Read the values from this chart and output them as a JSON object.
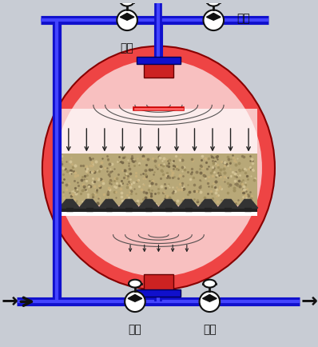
{
  "bg_color": "#c8ccd4",
  "pipe_blue": "#1010cc",
  "pipe_blue_inner": "#4444ff",
  "tank_red": "#cc2222",
  "tank_red2": "#ee4444",
  "tank_pink": "#f8c0c0",
  "tank_white": "#faf0f0",
  "sand_color": "#b8a878",
  "black": "#111111",
  "gray": "#555555",
  "label_open_top": "打开",
  "label_close_top": "关闭",
  "label_open_bot": "打开",
  "label_close_bot": "关闭",
  "font_size": 10
}
